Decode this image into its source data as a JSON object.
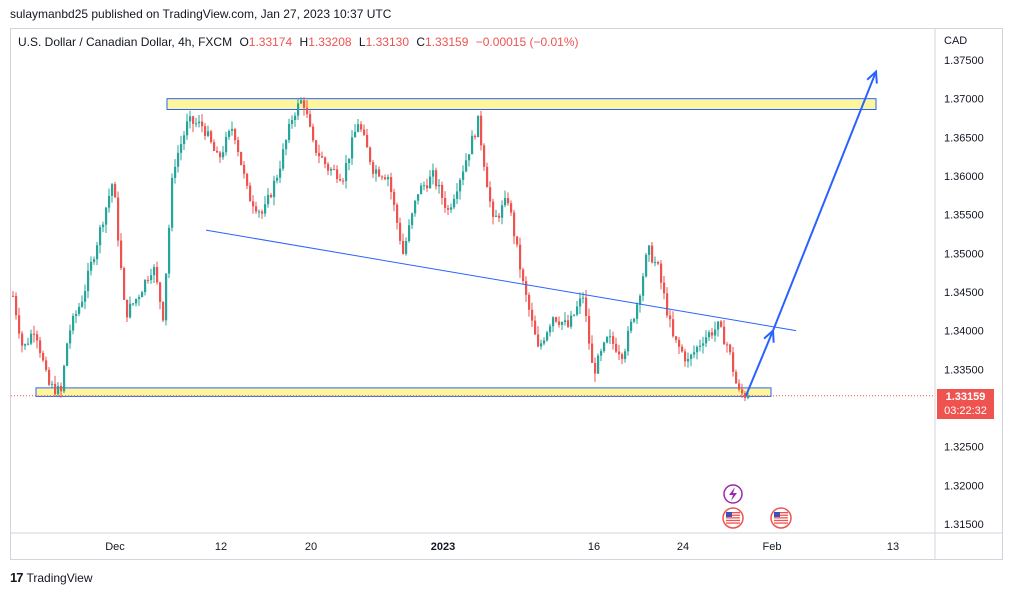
{
  "publisher": "sulaymanbd25 published on TradingView.com, Jan 27, 2023 10:37 UTC",
  "brand": {
    "logo": "17",
    "name": "TradingView"
  },
  "legend": {
    "symbol": "U.S. Dollar / Canadian Dollar, 4h, FXCM",
    "open_label": "O",
    "open": "1.33174",
    "high_label": "H",
    "high": "1.33208",
    "low_label": "L",
    "low": "1.33130",
    "close_label": "C",
    "close": "1.33159",
    "change": "−0.00015 (−0.01%)"
  },
  "currency": "CAD",
  "price_badge": {
    "price": "1.33159",
    "countdown": "03:22:32"
  },
  "colors": {
    "up": "#26a69a",
    "down": "#ef5350",
    "zone_fill": "#fff59d",
    "zone_border": "#2962ff",
    "line": "#2962ff",
    "arrow": "#2962ff"
  },
  "icons": [
    "lightning-event-icon",
    "us-flag-event-icon",
    "us-flag-event-icon"
  ],
  "chart_data": {
    "type": "candlestick",
    "y_ticks": [
      "1.37500",
      "1.37000",
      "1.36500",
      "1.36000",
      "1.35500",
      "1.35000",
      "1.34500",
      "1.34000",
      "1.33500",
      "1.33159",
      "1.32500",
      "1.32000",
      "1.31500"
    ],
    "y_tick_values": [
      1.375,
      1.37,
      1.365,
      1.36,
      1.355,
      1.35,
      1.345,
      1.34,
      1.335,
      1.33159,
      1.325,
      1.32,
      1.315
    ],
    "x_ticks": [
      "Dec",
      "12",
      "20",
      "2023",
      "16",
      "24",
      "Feb",
      "13"
    ],
    "ylim": [
      1.3135,
      1.3775
    ],
    "price_path": [
      [
        0,
        1.3445
      ],
      [
        10,
        1.3375
      ],
      [
        22,
        1.3405
      ],
      [
        35,
        1.333
      ],
      [
        48,
        1.332
      ],
      [
        55,
        1.3395
      ],
      [
        70,
        1.3445
      ],
      [
        85,
        1.352
      ],
      [
        100,
        1.3595
      ],
      [
        112,
        1.342
      ],
      [
        125,
        1.3445
      ],
      [
        140,
        1.3485
      ],
      [
        150,
        1.342
      ],
      [
        160,
        1.361
      ],
      [
        175,
        1.367
      ],
      [
        190,
        1.3665
      ],
      [
        205,
        1.362
      ],
      [
        220,
        1.3665
      ],
      [
        235,
        1.3575
      ],
      [
        250,
        1.355
      ],
      [
        265,
        1.3605
      ],
      [
        280,
        1.368
      ],
      [
        290,
        1.37
      ],
      [
        300,
        1.364
      ],
      [
        315,
        1.361
      ],
      [
        330,
        1.36
      ],
      [
        345,
        1.367
      ],
      [
        360,
        1.361
      ],
      [
        375,
        1.36
      ],
      [
        390,
        1.35
      ],
      [
        405,
        1.358
      ],
      [
        420,
        1.36
      ],
      [
        435,
        1.3555
      ],
      [
        450,
        1.361
      ],
      [
        465,
        1.367
      ],
      [
        480,
        1.354
      ],
      [
        495,
        1.357
      ],
      [
        510,
        1.346
      ],
      [
        525,
        1.3375
      ],
      [
        540,
        1.342
      ],
      [
        555,
        1.3405
      ],
      [
        570,
        1.3445
      ],
      [
        580,
        1.3345
      ],
      [
        595,
        1.339
      ],
      [
        610,
        1.337
      ],
      [
        625,
        1.344
      ],
      [
        635,
        1.3505
      ],
      [
        645,
        1.348
      ],
      [
        660,
        1.339
      ],
      [
        675,
        1.336
      ],
      [
        690,
        1.339
      ],
      [
        705,
        1.3405
      ],
      [
        715,
        1.338
      ],
      [
        725,
        1.332
      ],
      [
        735,
        1.3316
      ]
    ],
    "drawings": {
      "resistance_zone": [
        1.37,
        1.3686
      ],
      "support_zone": [
        1.3326,
        1.3315
      ],
      "trendline": [
        [
          195,
          1.353
        ],
        [
          785,
          1.34
        ]
      ],
      "arrow_path": [
        [
          735,
          1.3316
        ],
        [
          762,
          1.34
        ],
        [
          865,
          1.3735
        ]
      ]
    },
    "current_price": 1.33159
  }
}
